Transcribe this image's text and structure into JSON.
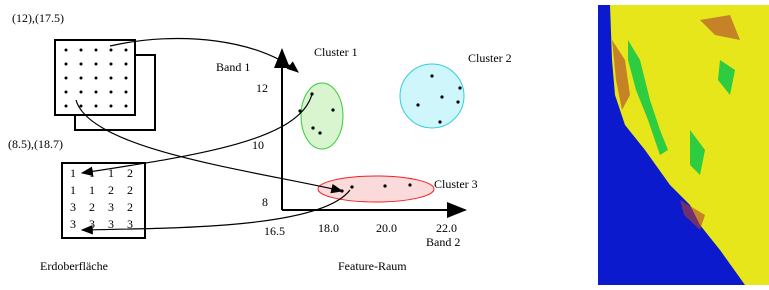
{
  "image_labels": {
    "pixel_coords": "(12),(17.5)",
    "pixel_coords_2": "(8.5),(18.7)",
    "earth_surface": "Erdoberfläche"
  },
  "class_grid": {
    "rows": [
      [
        "1",
        "1",
        "1",
        "2"
      ],
      [
        "1",
        "1",
        "2",
        "2"
      ],
      [
        "3",
        "2",
        "3",
        "2"
      ],
      [
        "3",
        "3",
        "3",
        "3"
      ]
    ]
  },
  "feature_space": {
    "title": "Feature-Raum",
    "y_axis_label": "Band 1",
    "x_axis_label": "Band 2",
    "y_ticks": [
      "12",
      "10",
      "8"
    ],
    "x_ticks": [
      "16.5",
      "18.0",
      "20.0",
      "22.0"
    ],
    "clusters": [
      "Cluster 1",
      "Cluster 2",
      "Cluster 3"
    ]
  }
}
